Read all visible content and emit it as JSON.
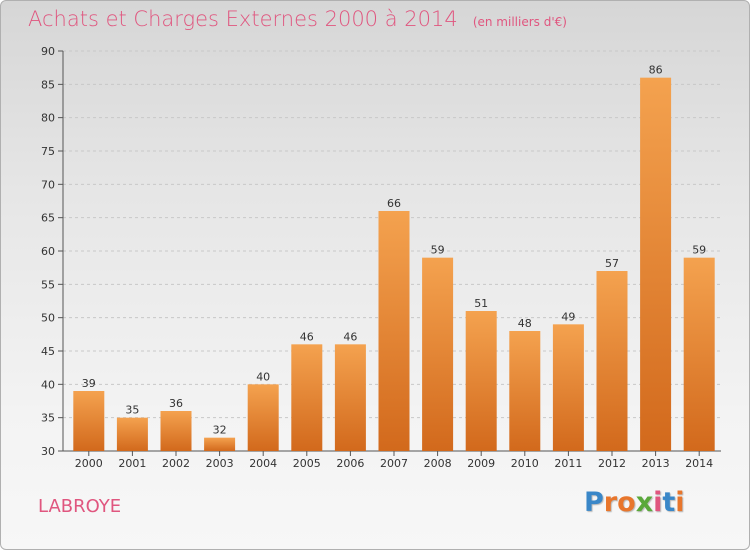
{
  "title": "Achats et Charges Externes 2000 à 2014",
  "unit": "(en milliers d'€)",
  "commune": "LABROYE",
  "logo": {
    "text": "Proxiti",
    "letters": [
      {
        "ch": "P",
        "color": "#3a87c8"
      },
      {
        "ch": "r",
        "color": "#e8762c"
      },
      {
        "ch": "o",
        "color": "#e8762c"
      },
      {
        "ch": "x",
        "color": "#5aa83a"
      },
      {
        "ch": "i",
        "color": "#e0567f"
      },
      {
        "ch": "t",
        "color": "#3a87c8"
      },
      {
        "ch": "i",
        "color": "#e8762c"
      }
    ]
  },
  "colors": {
    "accent": "#e0567f",
    "bar_top": "#f4a24f",
    "bar_bottom": "#d2691c",
    "grid": "#c8c8c8"
  },
  "chart_data": {
    "type": "bar",
    "categories": [
      "2000",
      "2001",
      "2002",
      "2003",
      "2004",
      "2005",
      "2006",
      "2007",
      "2008",
      "2009",
      "2010",
      "2011",
      "2012",
      "2013",
      "2014"
    ],
    "values": [
      39,
      35,
      36,
      32,
      40,
      46,
      46,
      66,
      59,
      51,
      48,
      49,
      57,
      86,
      59
    ],
    "ylim": [
      30,
      90
    ],
    "yticks": [
      30,
      35,
      40,
      45,
      50,
      55,
      60,
      65,
      70,
      75,
      80,
      85,
      90
    ],
    "grid": true,
    "title": "Achats et Charges Externes 2000 à 2014",
    "xlabel": "",
    "ylabel": ""
  }
}
